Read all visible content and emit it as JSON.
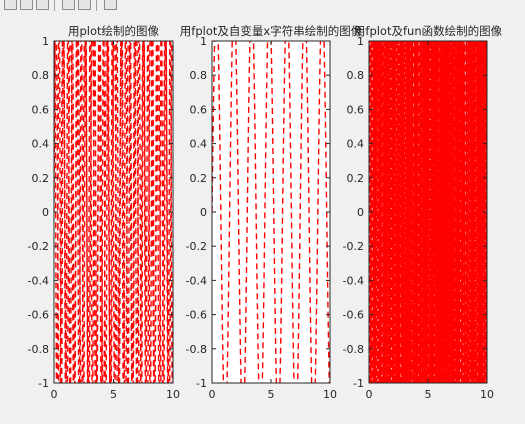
{
  "toolbar": {
    "buttons": [
      "zoom-in-icon",
      "zoom-out-icon",
      "pan-icon",
      "rotate-icon",
      "data-cursor-icon",
      "brush-icon"
    ]
  },
  "chart_data": [
    {
      "type": "line",
      "title": "用plot绘制的图像",
      "xlim": [
        0,
        10
      ],
      "ylim": [
        -1,
        1
      ],
      "xticks": [
        "0",
        "5",
        "10"
      ],
      "yticks": [
        "-1",
        "-0.8",
        "-0.6",
        "-0.4",
        "-0.2",
        "0",
        "0.2",
        "0.4",
        "0.6",
        "0.8",
        "1"
      ],
      "line_color": "#ff0000",
      "line_style": "dashed",
      "grid": false,
      "series": [
        {
          "x": [
            0,
            10
          ],
          "y_range": [
            -1,
            1
          ]
        }
      ]
    },
    {
      "type": "line",
      "title": "用fplot及自变量x字符串绘制的图像",
      "xlim": [
        0,
        10
      ],
      "ylim": [
        -1,
        1
      ],
      "xticks": [
        "0",
        "5",
        "10"
      ],
      "yticks": [
        "-1",
        "-0.8",
        "-0.6",
        "-0.4",
        "-0.2",
        "0",
        "0.2",
        "0.4",
        "0.6",
        "0.8",
        "1"
      ],
      "line_color": "#ff0000",
      "line_style": "dashed",
      "grid": false,
      "series": [
        {
          "x": [
            0,
            10
          ],
          "y_range": [
            -1,
            1
          ]
        }
      ]
    },
    {
      "type": "line",
      "title": "用fplot及fun函数绘制的图像",
      "xlim": [
        0,
        10
      ],
      "ylim": [
        -1,
        1
      ],
      "xticks": [
        "0",
        "5",
        "10"
      ],
      "yticks": [
        "-1",
        "-0.8",
        "-0.6",
        "-0.4",
        "-0.2",
        "0",
        "0.2",
        "0.4",
        "0.6",
        "0.8",
        "1"
      ],
      "line_color": "#ff0000",
      "line_style": "dashed",
      "grid": false,
      "series": [
        {
          "x": [
            0,
            10
          ],
          "y_range": [
            -1,
            1
          ]
        }
      ]
    }
  ]
}
